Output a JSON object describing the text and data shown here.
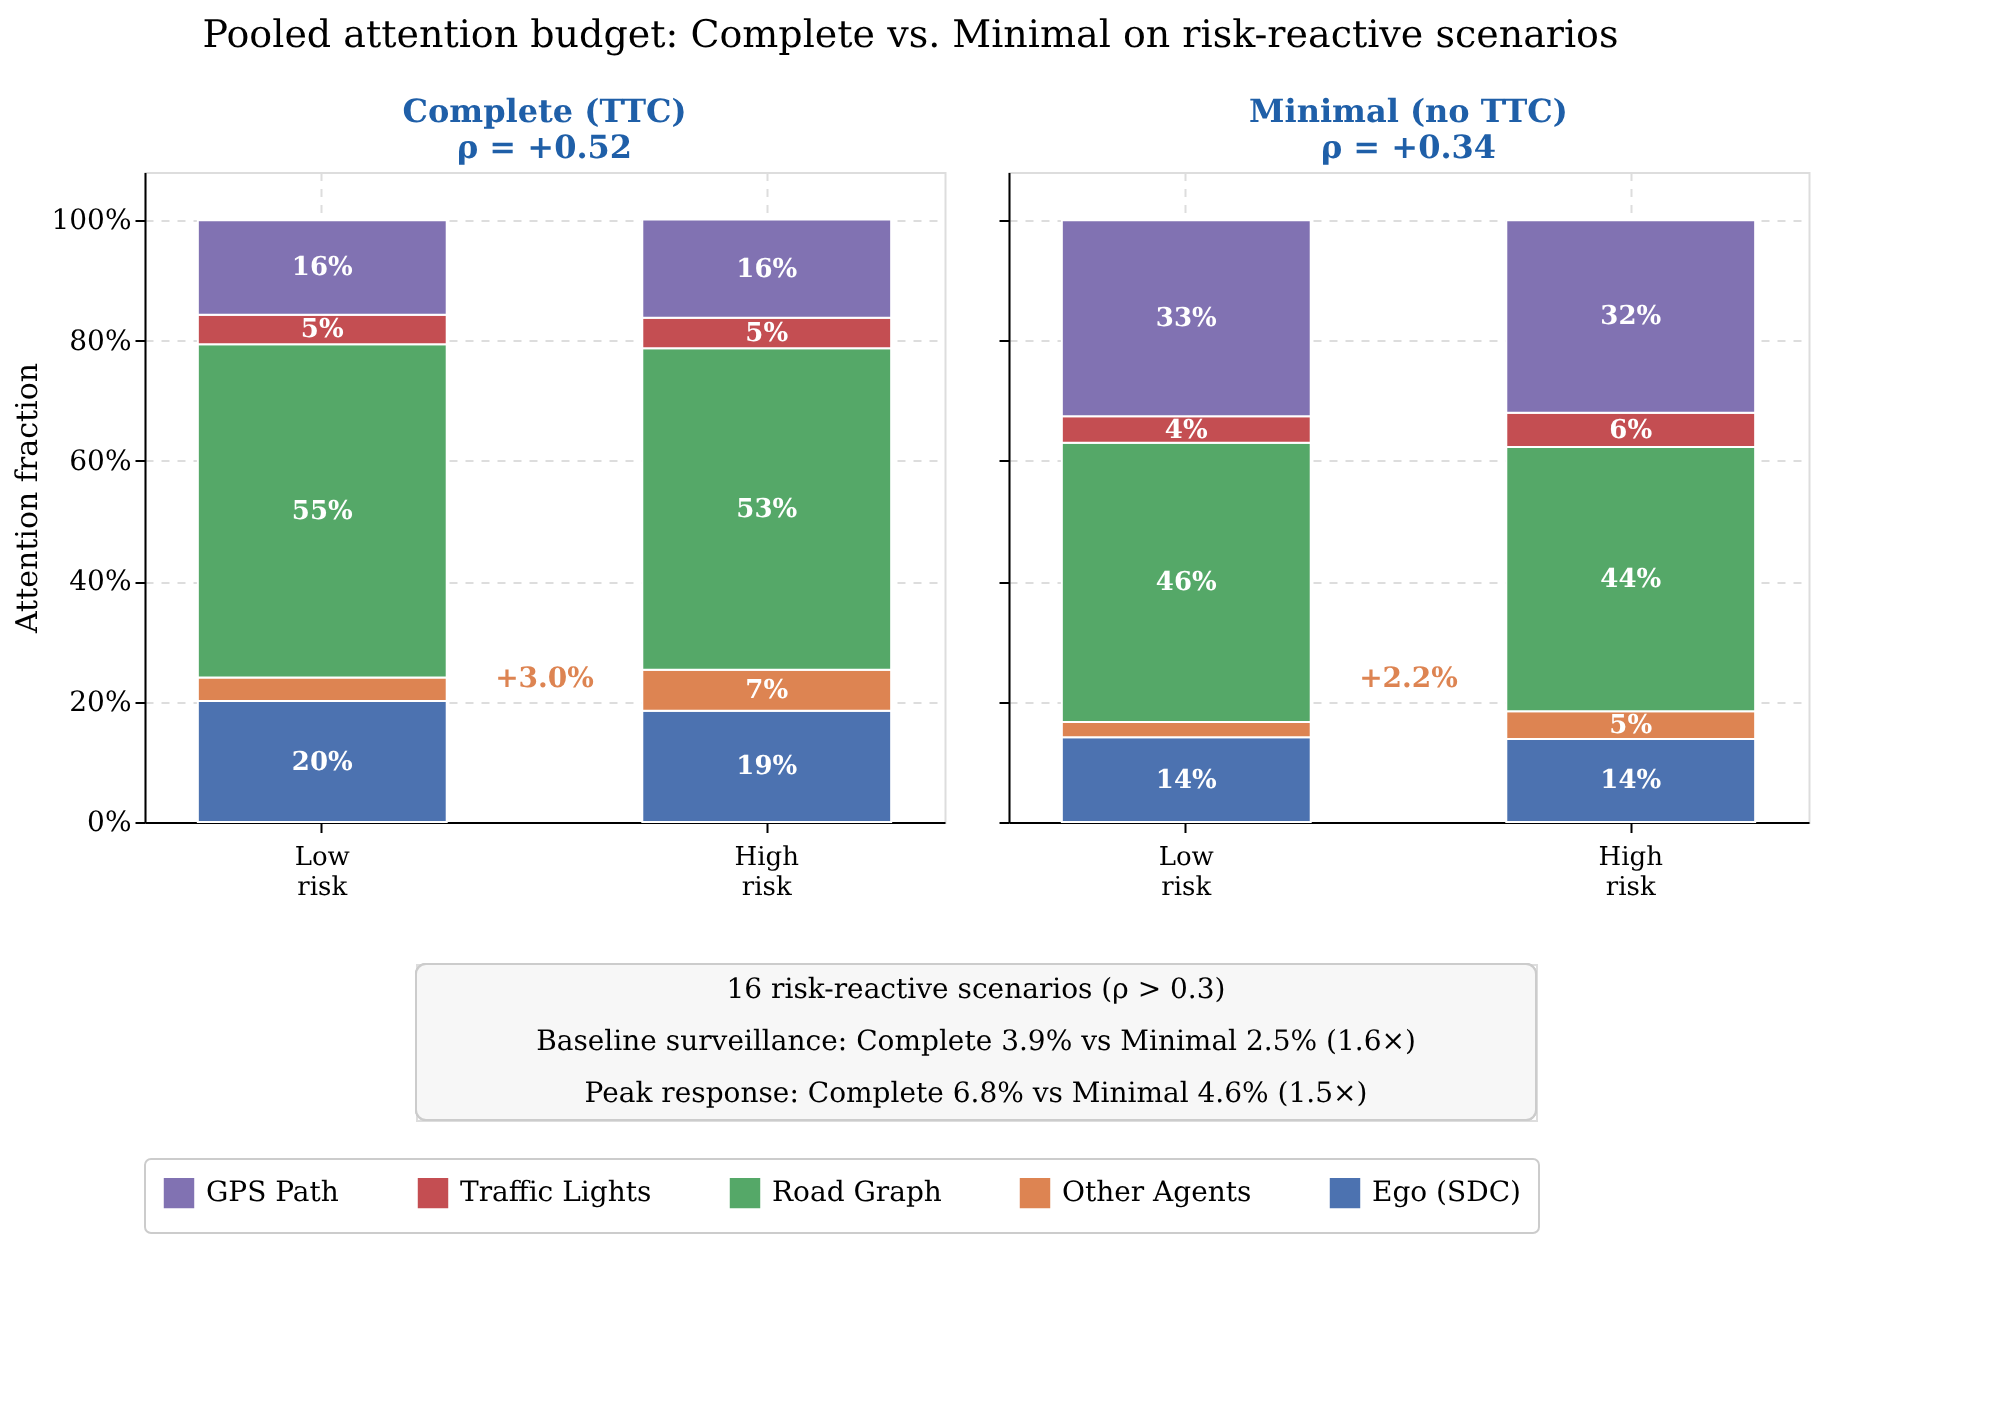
{
  "chart_data": [
    {
      "type": "bar",
      "stacked": true,
      "title": "Complete (TTC)\nρ = +0.52",
      "ylabel": "Attention fraction",
      "categories": [
        "Low\nrisk",
        "High\nrisk"
      ],
      "series": [
        {
          "name": "Ego (SDC)",
          "color": "#4c72b0",
          "values": [
            20.1,
            18.5
          ],
          "value_labels": [
            "20%",
            "19%"
          ]
        },
        {
          "name": "Other Agents",
          "color": "#dd8452",
          "values": [
            3.9,
            6.8
          ],
          "value_labels": [
            null,
            "7%"
          ]
        },
        {
          "name": "Road Graph",
          "color": "#55a868",
          "values": [
            55.4,
            53.4
          ],
          "value_labels": [
            "55%",
            "53%"
          ]
        },
        {
          "name": "Traffic Lights",
          "color": "#c44e52",
          "values": [
            4.9,
            5.1
          ],
          "value_labels": [
            "5%",
            "5%"
          ]
        },
        {
          "name": "GPS Path",
          "color": "#8172b2",
          "values": [
            15.7,
            16.3
          ],
          "value_labels": [
            "16%",
            "16%"
          ]
        }
      ],
      "ylim": [
        0,
        108
      ],
      "yticks": [
        {
          "value": 0,
          "label": "0%"
        },
        {
          "value": 20,
          "label": "20%"
        },
        {
          "value": 40,
          "label": "40%"
        },
        {
          "value": 60,
          "label": "60%"
        },
        {
          "value": 80,
          "label": "80%"
        },
        {
          "value": 100,
          "label": "100%"
        }
      ],
      "grid": true,
      "legend": "bottom",
      "annotations": [
        "+3.0%"
      ]
    },
    {
      "type": "bar",
      "stacked": true,
      "title": "Minimal (no TTC)\nρ = +0.34",
      "categories": [
        "Low\nrisk",
        "High\nrisk"
      ],
      "series": [
        {
          "name": "Ego (SDC)",
          "color": "#4c72b0",
          "values": [
            14.1,
            13.8
          ],
          "value_labels": [
            "14%",
            "14%"
          ]
        },
        {
          "name": "Other Agents",
          "color": "#dd8452",
          "values": [
            2.5,
            4.6
          ],
          "value_labels": [
            null,
            "5%"
          ]
        },
        {
          "name": "Road Graph",
          "color": "#55a868",
          "values": [
            46.4,
            43.9
          ],
          "value_labels": [
            "46%",
            "44%"
          ]
        },
        {
          "name": "Traffic Lights",
          "color": "#c44e52",
          "values": [
            4.4,
            5.7
          ],
          "value_labels": [
            "4%",
            "6%"
          ]
        },
        {
          "name": "GPS Path",
          "color": "#8172b2",
          "values": [
            32.6,
            32.0
          ],
          "value_labels": [
            "33%",
            "32%"
          ]
        }
      ],
      "ylim": [
        0,
        108
      ],
      "yticks": [
        {
          "value": 0,
          "label": "0%"
        },
        {
          "value": 20,
          "label": "20%"
        },
        {
          "value": 40,
          "label": "40%"
        },
        {
          "value": 60,
          "label": "60%"
        },
        {
          "value": 80,
          "label": "80%"
        },
        {
          "value": 100,
          "label": "100%"
        }
      ],
      "grid": true,
      "legend": "bottom",
      "tick_labels": "x",
      "annotations": [
        "+2.2%"
      ]
    },
    {
      "type": "other",
      "title": "Pooled attention budget: Complete vs. Minimal on risk-reactive scenarios",
      "annotations": [
        "16 risk-reactive scenarios (ρ > 0.3)",
        "Baseline surveillance: Complete 3.9% vs Minimal 2.5% (1.6×)",
        "Peak response: Complete 6.8% vs Minimal 4.6% (1.5×)"
      ]
    }
  ]
}
